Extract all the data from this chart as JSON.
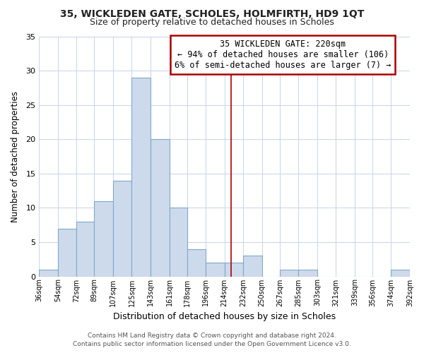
{
  "title1": "35, WICKLEDEN GATE, SCHOLES, HOLMFIRTH, HD9 1QT",
  "title2": "Size of property relative to detached houses in Scholes",
  "xlabel": "Distribution of detached houses by size in Scholes",
  "ylabel": "Number of detached properties",
  "bar_edges": [
    36,
    54,
    72,
    89,
    107,
    125,
    143,
    161,
    178,
    196,
    214,
    232,
    250,
    267,
    285,
    303,
    321,
    339,
    356,
    374,
    392
  ],
  "bar_heights": [
    1,
    7,
    8,
    11,
    14,
    29,
    20,
    10,
    4,
    2,
    2,
    3,
    0,
    1,
    1,
    0,
    0,
    0,
    0,
    1
  ],
  "bar_color": "#cddaeb",
  "bar_edge_color": "#7fa8cc",
  "vline_x": 220,
  "vline_color": "#aa0000",
  "ylim": [
    0,
    35
  ],
  "yticks": [
    0,
    5,
    10,
    15,
    20,
    25,
    30,
    35
  ],
  "tick_labels": [
    "36sqm",
    "54sqm",
    "72sqm",
    "89sqm",
    "107sqm",
    "125sqm",
    "143sqm",
    "161sqm",
    "178sqm",
    "196sqm",
    "214sqm",
    "232sqm",
    "250sqm",
    "267sqm",
    "285sqm",
    "303sqm",
    "321sqm",
    "339sqm",
    "356sqm",
    "374sqm",
    "392sqm"
  ],
  "annotation_title": "35 WICKLEDEN GATE: 220sqm",
  "annotation_line1": "← 94% of detached houses are smaller (106)",
  "annotation_line2": "6% of semi-detached houses are larger (7) →",
  "annotation_box_color": "#ffffff",
  "annotation_box_edge": "#aa0000",
  "footer1": "Contains HM Land Registry data © Crown copyright and database right 2024.",
  "footer2": "Contains public sector information licensed under the Open Government Licence v3.0.",
  "bg_color": "#ffffff",
  "grid_color": "#c8d4e8"
}
